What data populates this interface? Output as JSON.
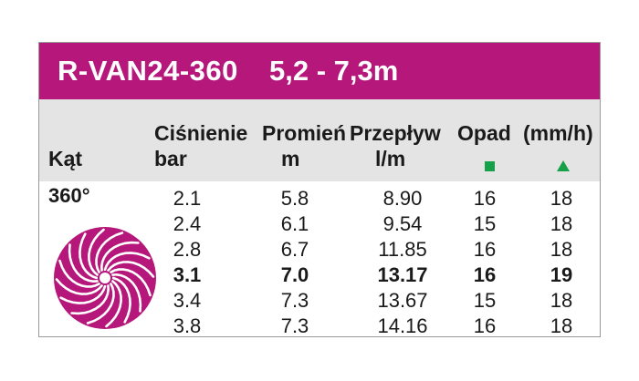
{
  "title": {
    "model": "R-VAN24-360",
    "range": "5,2 - 7,3m"
  },
  "headers": {
    "angle": "Kąt",
    "pressure_line1": "Ciśnienie",
    "pressure_line2": "bar",
    "radius_line1": "Promień",
    "radius_line2": "m",
    "flow_line1": "Przepływ",
    "flow_line2": "l/m",
    "precip_line1": "Opad",
    "precip_unit": "(mm/h)"
  },
  "markers": {
    "square": "square-marker",
    "triangle": "triangle-marker",
    "color": "#17a04a"
  },
  "accent_color": "#b5177a",
  "angle": "360°",
  "rows": [
    {
      "pressure": "2.1",
      "radius": "5.8",
      "flow": "8.90",
      "precip_square": "16",
      "precip_triangle": "18",
      "bold": false
    },
    {
      "pressure": "2.4",
      "radius": "6.1",
      "flow": "9.54",
      "precip_square": "15",
      "precip_triangle": "18",
      "bold": false
    },
    {
      "pressure": "2.8",
      "radius": "6.7",
      "flow": "11.85",
      "precip_square": "16",
      "precip_triangle": "18",
      "bold": false
    },
    {
      "pressure": "3.1",
      "radius": "7.0",
      "flow": "13.17",
      "precip_square": "16",
      "precip_triangle": "19",
      "bold": true
    },
    {
      "pressure": "3.4",
      "radius": "7.3",
      "flow": "13.67",
      "precip_square": "15",
      "precip_triangle": "18",
      "bold": false
    },
    {
      "pressure": "3.8",
      "radius": "7.3",
      "flow": "14.16",
      "precip_square": "16",
      "precip_triangle": "18",
      "bold": false
    }
  ]
}
